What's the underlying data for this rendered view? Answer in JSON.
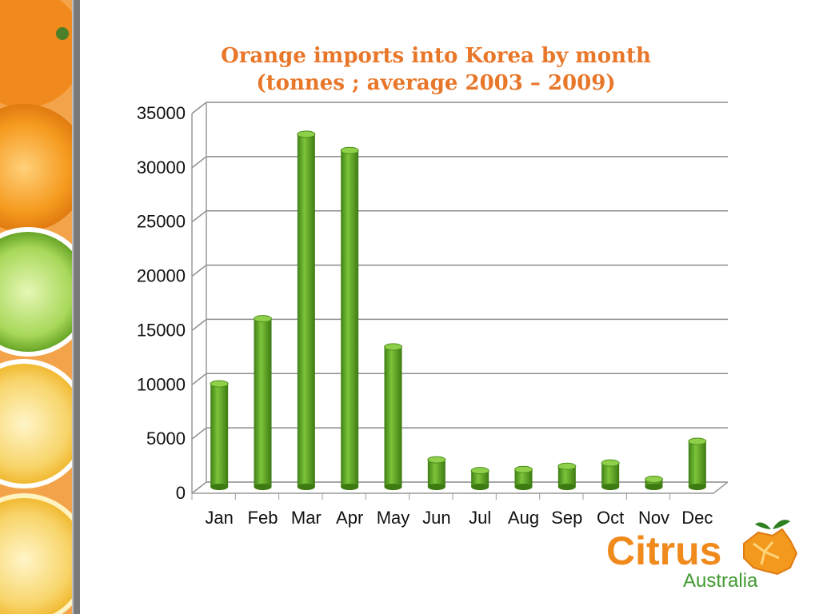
{
  "chart_data": {
    "type": "bar",
    "title": "Orange imports into Korea by month",
    "subtitle": "(tonnes ; average 2003 – 2009)",
    "categories": [
      "Jan",
      "Feb",
      "Mar",
      "Apr",
      "May",
      "Jun",
      "Jul",
      "Aug",
      "Sep",
      "Oct",
      "Nov",
      "Dec"
    ],
    "values": [
      9500,
      15500,
      32500,
      31000,
      12900,
      2500,
      1500,
      1600,
      1900,
      2200,
      700,
      4200
    ],
    "ylim": [
      0,
      35000
    ],
    "yticks": [
      "0",
      "5000",
      "10000",
      "15000",
      "20000",
      "25000",
      "30000",
      "35000"
    ],
    "xlabel": "",
    "ylabel": "",
    "grid": true,
    "legend": "none",
    "bar_color": "#5aa323",
    "title_color": "#e8772a"
  },
  "logo": {
    "name": "Citrus",
    "sub": "Australia",
    "icon": "orange-australia-map-icon"
  },
  "decor": {
    "left_strip": "citrus-slices-image"
  }
}
